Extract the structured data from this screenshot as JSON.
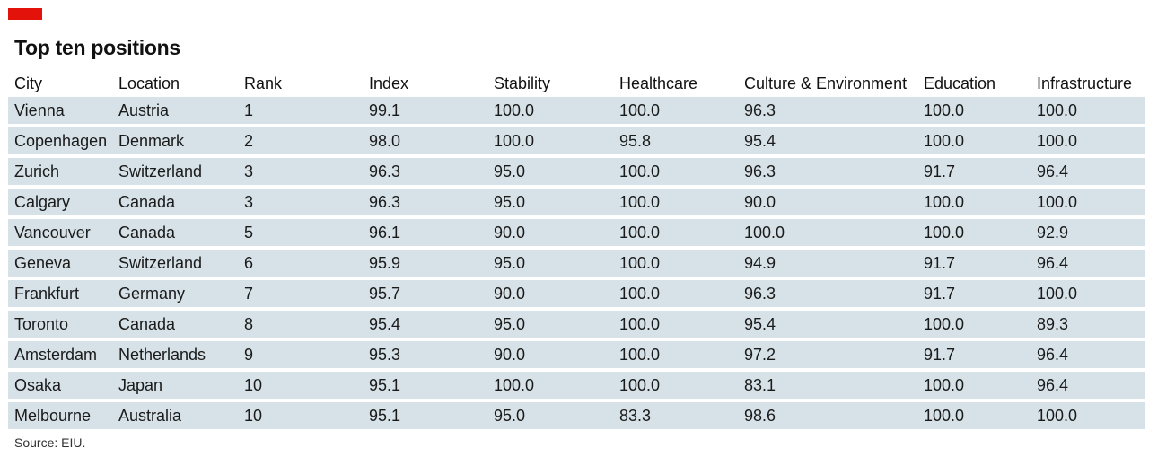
{
  "brand": {
    "accent_color": "#e3120b",
    "row_color": "#d6e2e8"
  },
  "chart_data": {
    "type": "table",
    "title": "Top ten positions",
    "columns": [
      "City",
      "Location",
      "Rank",
      "Index",
      "Stability",
      "Healthcare",
      "Culture & Environment",
      "Education",
      "Infrastructure"
    ],
    "rows": [
      [
        "Vienna",
        "Austria",
        "1",
        "99.1",
        "100.0",
        "100.0",
        "96.3",
        "100.0",
        "100.0"
      ],
      [
        "Copenhagen",
        "Denmark",
        "2",
        "98.0",
        "100.0",
        "95.8",
        "95.4",
        "100.0",
        "100.0"
      ],
      [
        "Zurich",
        "Switzerland",
        "3",
        "96.3",
        "95.0",
        "100.0",
        "96.3",
        "91.7",
        "96.4"
      ],
      [
        "Calgary",
        "Canada",
        "3",
        "96.3",
        "95.0",
        "100.0",
        "90.0",
        "100.0",
        "100.0"
      ],
      [
        "Vancouver",
        "Canada",
        "5",
        "96.1",
        "90.0",
        "100.0",
        "100.0",
        "100.0",
        "92.9"
      ],
      [
        "Geneva",
        "Switzerland",
        "6",
        "95.9",
        "95.0",
        "100.0",
        "94.9",
        "91.7",
        "96.4"
      ],
      [
        "Frankfurt",
        "Germany",
        "7",
        "95.7",
        "90.0",
        "100.0",
        "96.3",
        "91.7",
        "100.0"
      ],
      [
        "Toronto",
        "Canada",
        "8",
        "95.4",
        "95.0",
        "100.0",
        "95.4",
        "100.0",
        "89.3"
      ],
      [
        "Amsterdam",
        "Netherlands",
        "9",
        "95.3",
        "90.0",
        "100.0",
        "97.2",
        "91.7",
        "96.4"
      ],
      [
        "Osaka",
        "Japan",
        "10",
        "95.1",
        "100.0",
        "100.0",
        "83.1",
        "100.0",
        "96.4"
      ],
      [
        "Melbourne",
        "Australia",
        "10",
        "95.1",
        "95.0",
        "83.3",
        "98.6",
        "100.0",
        "100.0"
      ]
    ],
    "source": "Source: EIU."
  }
}
